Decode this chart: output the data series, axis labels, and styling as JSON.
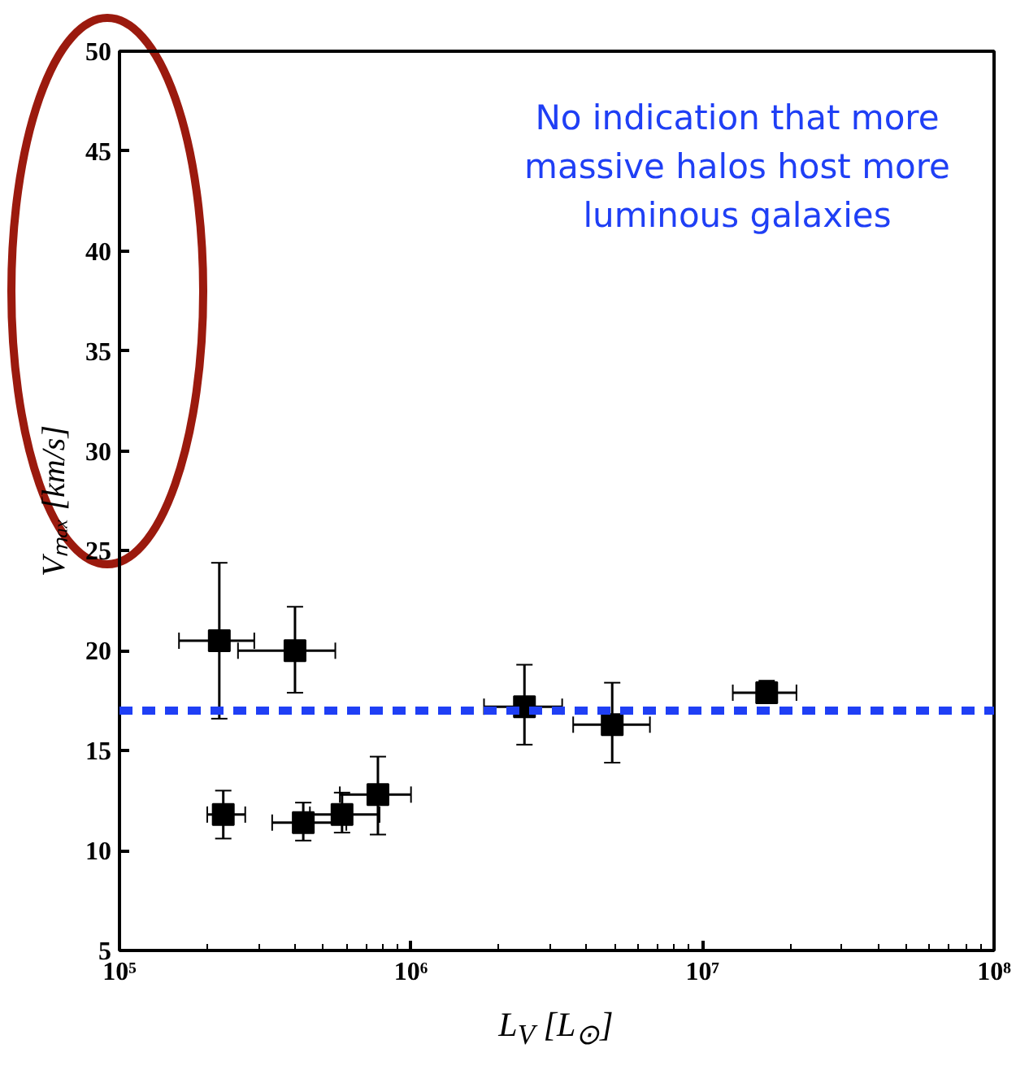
{
  "chart_data": {
    "type": "scatter",
    "xlabel": "L$_{V}$ [L$_{⊙}$]",
    "ylabel": "Vₘₐₓ [km/s]",
    "log": "x",
    "grid": false,
    "marker": "square",
    "x": [
      220000,
      400000,
      227000,
      427000,
      580000,
      770000,
      2450000,
      4900000,
      16600000
    ],
    "values": [
      20.5,
      20.0,
      11.8,
      11.4,
      11.8,
      12.8,
      17.2,
      16.3,
      17.9
    ],
    "color": "#000000",
    "errors": [
      [
        16.6,
        24.4
      ],
      [
        17.9,
        22.2
      ],
      [
        10.6,
        13.0
      ],
      [
        10.5,
        12.4
      ],
      [
        10.9,
        12.9
      ],
      [
        10.8,
        14.7
      ],
      [
        15.3,
        19.3
      ],
      [
        14.4,
        18.4
      ],
      [
        17.4,
        18.5
      ]
    ],
    "xerrors": [
      [
        160000,
        290000
      ],
      [
        255000,
        550000
      ],
      [
        200000,
        270000
      ],
      [
        334000,
        600000
      ],
      [
        450000,
        780000
      ],
      [
        570000,
        1000000
      ],
      [
        1780000,
        3300000
      ],
      [
        3600000,
        6600000
      ],
      [
        12700000,
        21000000
      ]
    ],
    "xlim": [
      100000,
      100000000
    ],
    "xticks": [
      {
        "value": 100000,
        "label": "10⁵"
      },
      {
        "value": 1000000,
        "label": "10⁶"
      },
      {
        "value": 10000000,
        "label": "10⁷"
      },
      {
        "value": 100000000,
        "label": "10⁸"
      }
    ],
    "ylim": [
      5,
      50
    ],
    "yticks": [
      5,
      10,
      15,
      20,
      25,
      30,
      35,
      40,
      45,
      50
    ],
    "ref_lines": [
      {
        "axis": "y",
        "value": 17,
        "color": "#1f3ff5",
        "line_style": "dashed"
      }
    ],
    "annotations": [
      "No indication that more\nmassive halos host more\nluminous galaxies"
    ]
  }
}
